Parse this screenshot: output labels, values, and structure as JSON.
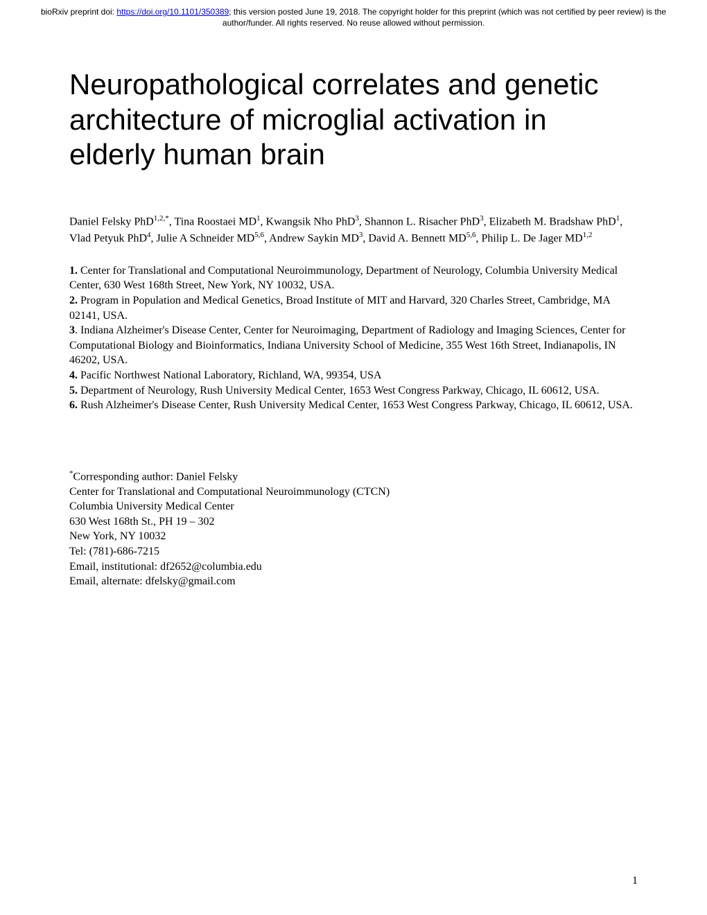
{
  "banner": {
    "prefix": "bioRxiv preprint doi: ",
    "doi_url": "https://doi.org/10.1101/350389",
    "suffix": "; this version posted June 19, 2018. The copyright holder for this preprint (which was not certified by peer review) is the author/funder. All rights reserved. No reuse allowed without permission."
  },
  "title": "Neuropathological correlates and genetic architecture of microglial activation in elderly human brain",
  "authors_html_parts": {
    "a1": "Daniel Felsky PhD",
    "s1": "1,2,*",
    "a2": ", Tina Roostaei MD",
    "s2": "1",
    "a3": ", Kwangsik Nho PhD",
    "s3": "3",
    "a4": ", Shannon L. Risacher PhD",
    "s4": "3",
    "a5": ", Elizabeth M. Bradshaw PhD",
    "s5": "1",
    "a6": ", Vlad Petyuk PhD",
    "s6": "4",
    "a7": ", Julie A Schneider MD",
    "s7": "5,6",
    "a8": ", Andrew Saykin MD",
    "s8": "3",
    "a9": ", David A. Bennett MD",
    "s9": "5,6",
    "a10": ", Philip L. De Jager MD",
    "s10": "1,2"
  },
  "affiliations": {
    "n1": "1.",
    "t1": " Center for Translational and Computational Neuroimmunology, Department of Neurology, Columbia University Medical Center, 630 West 168th Street, New York, NY 10032, USA.",
    "n2": "2.",
    "t2": " Program in Population and Medical Genetics, Broad Institute of MIT and Harvard, 320 Charles Street, Cambridge, MA 02141, USA.",
    "n3": "3",
    "t3": ". Indiana Alzheimer's Disease Center, Center for Neuroimaging, Department of Radiology and Imaging Sciences, Center for Computational Biology and Bioinformatics, Indiana University School of Medicine, 355 West 16th Street, Indianapolis, IN 46202, USA.",
    "n4": "4.",
    "t4": " Pacific Northwest National Laboratory, Richland, WA, 99354, USA",
    "n5": "5.",
    "t5": " Department of Neurology, Rush University Medical Center, 1653 West Congress Parkway, Chicago, IL 60612, USA.",
    "n6": "6.",
    "t6": " Rush Alzheimer's Disease Center, Rush University Medical Center, 1653 West Congress Parkway, Chicago, IL 60612, USA."
  },
  "corresponding": {
    "sup": "*",
    "line1": "Corresponding author: Daniel Felsky",
    "line2": "Center for Translational and Computational Neuroimmunology (CTCN)",
    "line3": "Columbia University Medical Center",
    "line4": "630 West 168th St., PH 19 – 302",
    "line5": "New York, NY 10032",
    "line6": "Tel: (781)-686-7215",
    "line7": "Email, institutional: df2652@columbia.edu",
    "line8": "Email, alternate: dfelsky@gmail.com"
  },
  "page_number": "1"
}
